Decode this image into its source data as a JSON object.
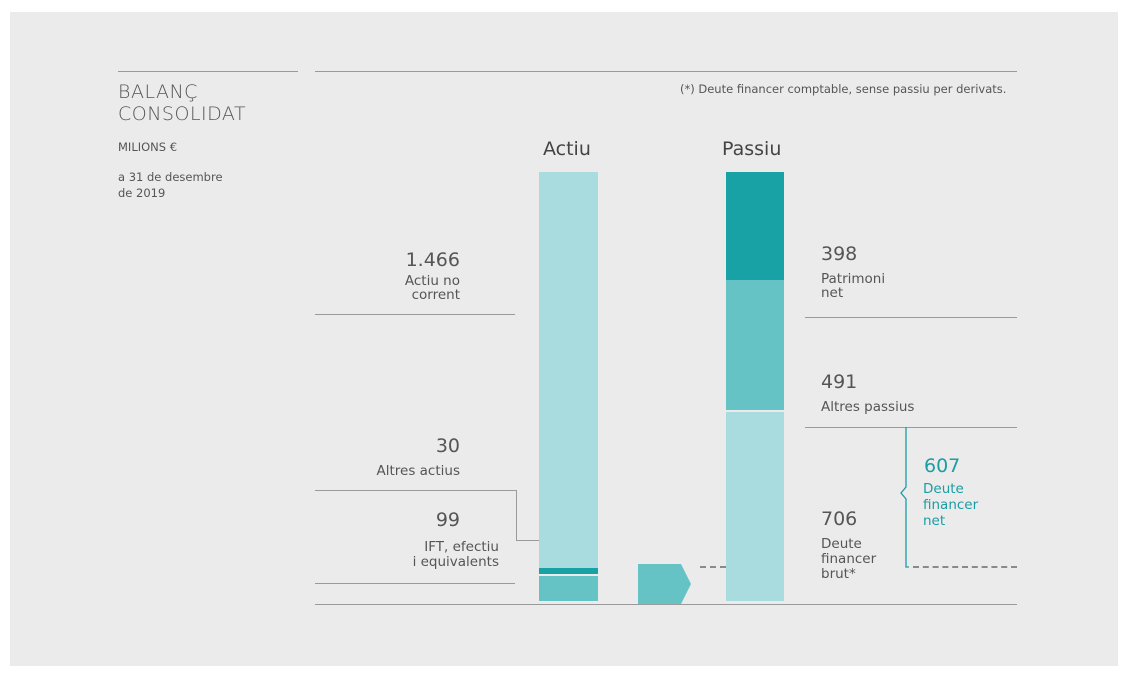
{
  "sidebar": {
    "title_line1": "BALANÇ",
    "title_line2": "CONSOLIDAT",
    "units": "MILIONS €",
    "date_line1": "a 31 de desembre",
    "date_line2": "de 2019"
  },
  "footnote": "(*) Deute financer comptable, sense passiu per derivats.",
  "colors": {
    "light": "#a8dcde",
    "mid": "#66c3c5",
    "dark": "#19a2a6",
    "accent_text": "#1a9da4"
  },
  "chart_data": {
    "type": "bar",
    "stacked": true,
    "unit": "MILIONS €",
    "categories": [
      "Actiu",
      "Passiu"
    ],
    "series": [
      {
        "column": "Actiu",
        "label": "Actiu no corrent",
        "value": 1466,
        "value_text": "1.466",
        "label_lines": [
          "Actiu no",
          "corrent"
        ],
        "color": "light"
      },
      {
        "column": "Actiu",
        "label": "Altres actius",
        "value": 30,
        "value_text": "30",
        "label_lines": [
          "Altres actius"
        ],
        "color": "dark"
      },
      {
        "column": "Actiu",
        "label": "IFT, efectiu i equivalents",
        "value": 99,
        "value_text": "99",
        "label_lines": [
          "IFT, efectiu",
          "i equivalents"
        ],
        "color": "mid"
      },
      {
        "column": "Passiu",
        "label": "Patrimoni net",
        "value": 398,
        "value_text": "398",
        "label_lines": [
          "Patrimoni",
          "net"
        ],
        "color": "dark"
      },
      {
        "column": "Passiu",
        "label": "Altres passius",
        "value": 491,
        "value_text": "491",
        "label_lines": [
          "Altres passius"
        ],
        "color": "mid"
      },
      {
        "column": "Passiu",
        "label": "Deute financer brut*",
        "value": 706,
        "value_text": "706",
        "label_lines": [
          "Deute",
          "financer",
          "brut*"
        ],
        "color": "light"
      }
    ],
    "net_debt": {
      "value": 607,
      "value_text": "607",
      "label_lines": [
        "Deute",
        "financer",
        "net"
      ]
    }
  }
}
